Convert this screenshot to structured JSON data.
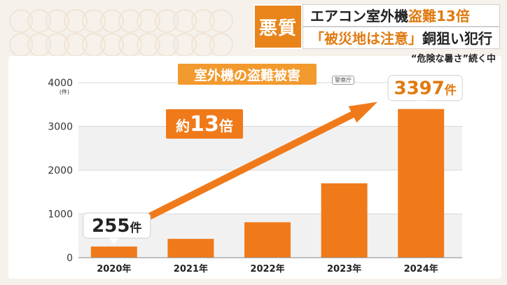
{
  "headline": {
    "badge": "悪質",
    "line1_prefix": "エアコン室外機",
    "line1_accent": "盗難13倍",
    "line2_accent": "「被災地は注意」",
    "line2_suffix": "銅狙い犯行",
    "subhead": "“危険な暑さ”続く中"
  },
  "colors": {
    "bar": "#f07a1a",
    "arrow": "#f07a1a",
    "accent": "#e07a10",
    "title_bg": "#f29a2e"
  },
  "chart_data": {
    "type": "bar",
    "title": "室外機の盗難被害",
    "source": "警察庁",
    "y_unit": "(件)",
    "categories": [
      "2020年",
      "2021年",
      "2022年",
      "2023年",
      "2024年"
    ],
    "values": [
      255,
      430,
      810,
      1700,
      3397
    ],
    "ylim": [
      0,
      4000
    ],
    "yticks": [
      "0",
      "1000",
      "2000",
      "3000",
      "4000"
    ],
    "callouts": [
      {
        "category_index": 0,
        "number": "255",
        "unit": "件"
      },
      {
        "category_index": 4,
        "number": "3397",
        "unit": "件"
      }
    ],
    "arrow_label_prefix": "約",
    "arrow_label_number": "13",
    "arrow_label_suffix": "倍",
    "grid": true,
    "legend": "none"
  }
}
